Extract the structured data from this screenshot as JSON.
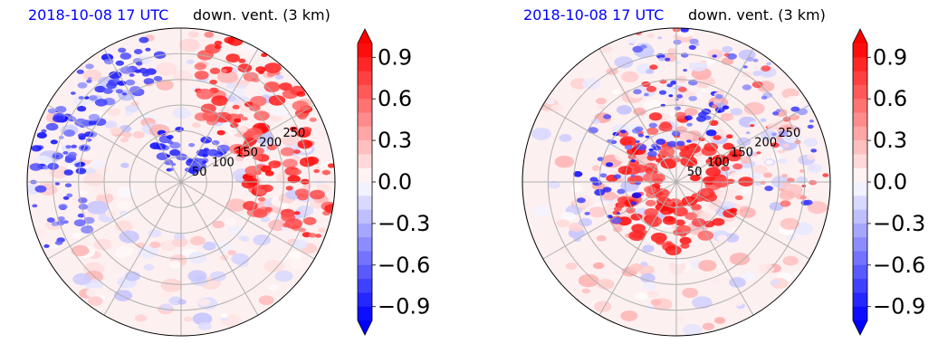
{
  "colors": {
    "title_time": "#0000ff",
    "positive": "#ff0000",
    "negative": "#0000ff",
    "grid": "#b0b0b0"
  },
  "colorbar": {
    "ticks": [
      "0.9",
      "0.6",
      "0.3",
      "0.0",
      "−0.3",
      "−0.6",
      "−0.9"
    ],
    "tick_values": [
      0.9,
      0.6,
      0.3,
      0.0,
      -0.3,
      -0.6,
      -0.9
    ],
    "range": [
      -1.0,
      1.0
    ],
    "extend": "both",
    "colormap": "bwr"
  },
  "panels": [
    {
      "time_label": "2018-10-08 17 UTC",
      "field_label": "down. vent. (3 km)"
    },
    {
      "time_label": "2018-10-08 17 UTC",
      "field_label": "down. vent. (3 km)"
    }
  ],
  "chart_data": [
    {
      "type": "heatmap",
      "projection": "polar",
      "title": "down. vent. (3 km)",
      "subtitle": "2018-10-08 17 UTC",
      "radial_tick_labels": [
        "50",
        "100",
        "150",
        "200",
        "250"
      ],
      "radial_ticks": [
        50,
        100,
        150,
        200,
        250
      ],
      "rmax": 300,
      "angular_gridlines": 12,
      "grid": true,
      "colorbar_range": [
        -1.0,
        1.0
      ]
    },
    {
      "type": "heatmap",
      "projection": "polar",
      "title": "down. vent. (3 km)",
      "subtitle": "2018-10-08 17 UTC",
      "radial_tick_labels": [
        "50",
        "100",
        "150",
        "200",
        "250"
      ],
      "radial_ticks": [
        50,
        100,
        150,
        200,
        250
      ],
      "rmax": 300,
      "angular_gridlines": 12,
      "grid": true,
      "colorbar_range": [
        -1.0,
        1.0
      ]
    }
  ]
}
